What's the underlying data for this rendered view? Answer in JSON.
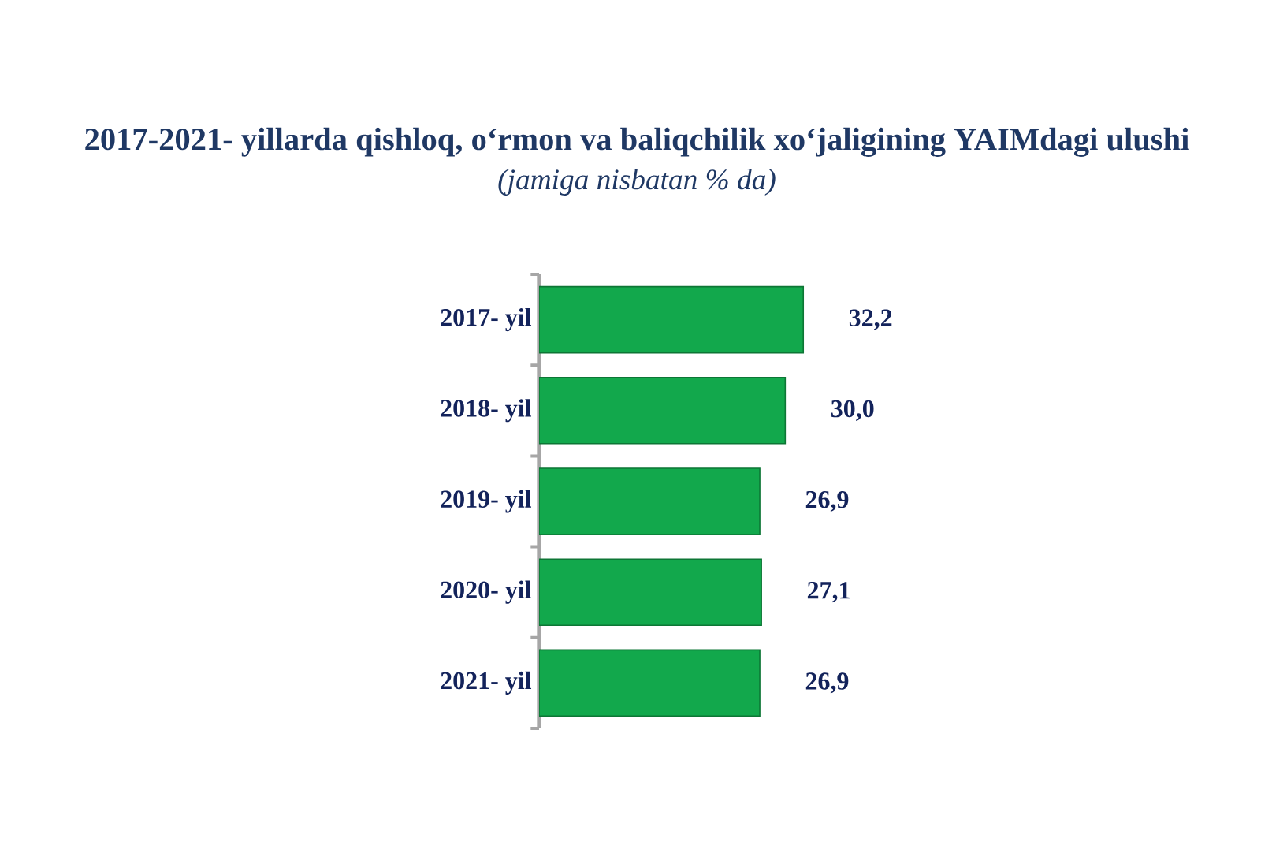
{
  "chart_data": {
    "type": "bar",
    "orientation": "horizontal",
    "title": "2017-2021- yillarda qishloq, o‘rmon va baliqchilik xo‘jaligining YAIMdagi ulushi",
    "subtitle": "(jamiga nisbatan % da)",
    "categories": [
      "2017- yil",
      "2018- yil",
      "2019- yil",
      "2020- yil",
      "2021- yil"
    ],
    "values": [
      32.2,
      30.0,
      26.9,
      27.1,
      26.9
    ],
    "value_labels": [
      "32,2",
      "30,0",
      "26,9",
      "27,1",
      "26,9"
    ],
    "color": "#12a84c",
    "tick_labels": "y"
  }
}
